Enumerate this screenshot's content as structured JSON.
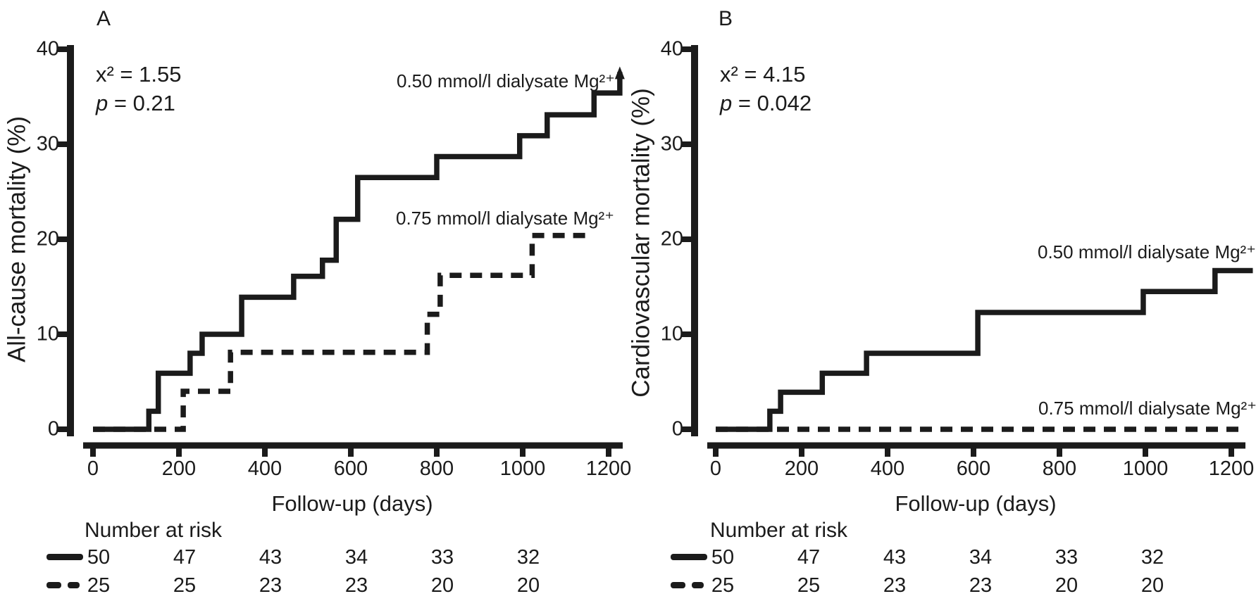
{
  "figure": {
    "background": "#ffffff",
    "ink_color": "#1b1b1b"
  },
  "chart_data": [
    {
      "type": "line",
      "subtype": "kaplan-meier-cumulative-incidence",
      "panel_label": "A",
      "ylabel": "All-cause mortality (%)",
      "xlabel": "Follow-up (days)",
      "stats": {
        "chi2_text": "x² = 1.55",
        "p_label": "p",
        "p_rest": " = 0.21"
      },
      "xticks": [
        0,
        200,
        400,
        600,
        800,
        1000,
        1200
      ],
      "yticks": [
        40,
        30,
        20,
        10,
        0
      ],
      "xlim": [
        0,
        1230
      ],
      "ylim": [
        0,
        40
      ],
      "grid": false,
      "series": [
        {
          "name": "0.50 mmol/l dialysate Mg²⁺",
          "line_style": "solid",
          "steps": [
            [
              130,
              1.9
            ],
            [
              152,
              5.9
            ],
            [
              226,
              8.0
            ],
            [
              254,
              10.0
            ],
            [
              346,
              13.9
            ],
            [
              467,
              16.1
            ],
            [
              534,
              17.8
            ],
            [
              566,
              22.1
            ],
            [
              616,
              26.5
            ],
            [
              800,
              28.7
            ],
            [
              993,
              30.9
            ],
            [
              1057,
              33.1
            ],
            [
              1166,
              35.4
            ],
            [
              1226,
              37.6
            ]
          ],
          "end_day": 1226,
          "end_marker": "arrow-up"
        },
        {
          "name": "0.75 mmol/l dialysate Mg²⁺",
          "line_style": "dashed",
          "steps": [
            [
              210,
              4.0
            ],
            [
              320,
              8.1
            ],
            [
              778,
              12.1
            ],
            [
              808,
              16.2
            ],
            [
              1022,
              20.4
            ]
          ],
          "end_day": 1160,
          "end_marker": "none"
        }
      ],
      "number_at_risk": {
        "title": "Number at risk",
        "time_points": [
          0,
          200,
          400,
          600,
          800,
          1000
        ],
        "rows": [
          {
            "line_style": "solid",
            "values": [
              50,
              47,
              43,
              34,
              33,
              32
            ]
          },
          {
            "line_style": "dashed",
            "values": [
              25,
              25,
              23,
              23,
              20,
              20
            ]
          }
        ]
      }
    },
    {
      "type": "line",
      "subtype": "kaplan-meier-cumulative-incidence",
      "panel_label": "B",
      "ylabel": "Cardiovascular mortality (%)",
      "xlabel": "Follow-up (days)",
      "stats": {
        "chi2_text": "x² = 4.15",
        "p_label": "p",
        "p_rest": " = 0.042"
      },
      "xticks": [
        0,
        200,
        400,
        600,
        800,
        1000,
        1200
      ],
      "yticks": [
        40,
        30,
        20,
        10,
        0
      ],
      "xlim": [
        0,
        1250
      ],
      "ylim": [
        0,
        40
      ],
      "grid": false,
      "series": [
        {
          "name": "0.50 mmol/l dialysate Mg²⁺",
          "line_style": "solid",
          "steps": [
            [
              126,
              1.9
            ],
            [
              151,
              3.9
            ],
            [
              248,
              5.9
            ],
            [
              351,
              8.0
            ],
            [
              610,
              12.3
            ],
            [
              995,
              14.5
            ],
            [
              1162,
              16.7
            ]
          ],
          "end_day": 1250,
          "end_marker": "none"
        },
        {
          "name": "0.75 mmol/l dialysate Mg²⁺",
          "line_style": "dashed",
          "steps": [],
          "end_day": 1220,
          "end_marker": "none"
        }
      ],
      "number_at_risk": {
        "title": "Number at risk",
        "time_points": [
          0,
          200,
          400,
          600,
          800,
          1000
        ],
        "rows": [
          {
            "line_style": "solid",
            "values": [
              50,
              47,
              43,
              34,
              33,
              32
            ]
          },
          {
            "line_style": "dashed",
            "values": [
              25,
              25,
              23,
              23,
              20,
              20
            ]
          }
        ]
      }
    }
  ]
}
